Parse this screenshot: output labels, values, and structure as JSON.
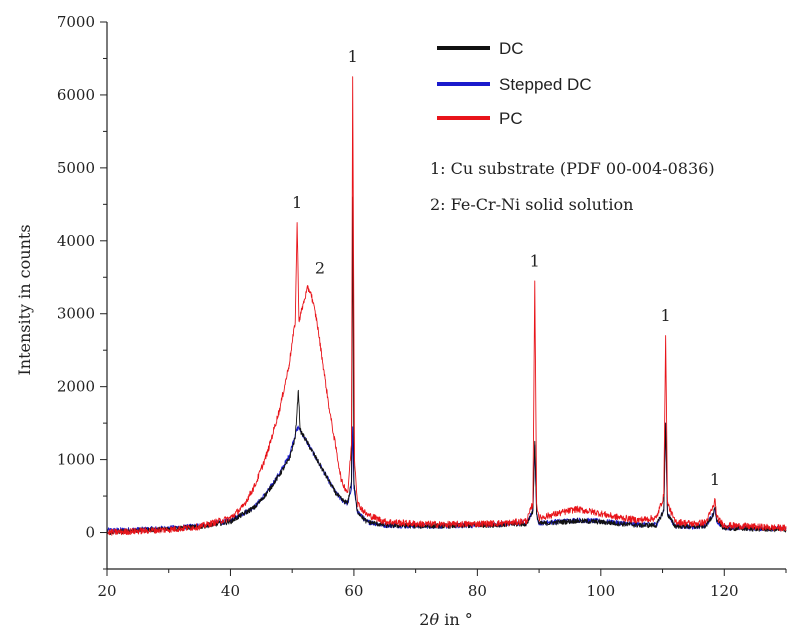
{
  "chart_data": {
    "type": "line",
    "xlabel_main": "2",
    "xlabel_theta": "θ",
    "xlabel_rest": " in °",
    "ylabel": "Intensity in counts",
    "xlim": [
      20,
      130
    ],
    "ylim": [
      -500,
      7000
    ],
    "xticks": [
      20,
      40,
      60,
      80,
      100,
      120
    ],
    "yticks": [
      0,
      1000,
      2000,
      3000,
      4000,
      5000,
      6000,
      7000
    ],
    "grid": false,
    "legend_position": "top-right",
    "series": [
      {
        "name": "DC",
        "color": "#111111",
        "points": [
          [
            20,
            0
          ],
          [
            25,
            30
          ],
          [
            30,
            50
          ],
          [
            35,
            80
          ],
          [
            40,
            150
          ],
          [
            44,
            350
          ],
          [
            46,
            550
          ],
          [
            48,
            800
          ],
          [
            49.5,
            1000
          ],
          [
            50.5,
            1300
          ],
          [
            51,
            1950
          ],
          [
            51.3,
            1400
          ],
          [
            52,
            1300
          ],
          [
            53,
            1150
          ],
          [
            54,
            1000
          ],
          [
            55,
            850
          ],
          [
            56,
            700
          ],
          [
            57,
            550
          ],
          [
            58,
            450
          ],
          [
            59,
            400
          ],
          [
            59.6,
            700
          ],
          [
            59.8,
            4600
          ],
          [
            60,
            700
          ],
          [
            60.5,
            300
          ],
          [
            62,
            150
          ],
          [
            65,
            100
          ],
          [
            70,
            90
          ],
          [
            75,
            90
          ],
          [
            80,
            100
          ],
          [
            85,
            110
          ],
          [
            88,
            120
          ],
          [
            89,
            300
          ],
          [
            89.3,
            1250
          ],
          [
            89.6,
            250
          ],
          [
            90,
            120
          ],
          [
            93,
            140
          ],
          [
            96,
            160
          ],
          [
            99,
            150
          ],
          [
            102,
            130
          ],
          [
            106,
            100
          ],
          [
            109,
            100
          ],
          [
            110.2,
            300
          ],
          [
            110.5,
            1500
          ],
          [
            110.8,
            250
          ],
          [
            112,
            90
          ],
          [
            115,
            80
          ],
          [
            117,
            90
          ],
          [
            118.2,
            250
          ],
          [
            118.5,
            350
          ],
          [
            118.8,
            150
          ],
          [
            120,
            60
          ],
          [
            125,
            50
          ],
          [
            130,
            40
          ]
        ]
      },
      {
        "name": "Stepped DC",
        "color": "#1a1acc",
        "points": [
          [
            20,
            30
          ],
          [
            25,
            40
          ],
          [
            30,
            60
          ],
          [
            35,
            90
          ],
          [
            40,
            160
          ],
          [
            44,
            360
          ],
          [
            46,
            560
          ],
          [
            48,
            820
          ],
          [
            49.5,
            1050
          ],
          [
            50.5,
            1350
          ],
          [
            51,
            1450
          ],
          [
            51.3,
            1400
          ],
          [
            52,
            1300
          ],
          [
            53,
            1150
          ],
          [
            54,
            1000
          ],
          [
            55,
            850
          ],
          [
            56,
            700
          ],
          [
            57,
            550
          ],
          [
            58,
            450
          ],
          [
            59,
            400
          ],
          [
            59.6,
            600
          ],
          [
            59.8,
            1450
          ],
          [
            60,
            600
          ],
          [
            60.5,
            300
          ],
          [
            62,
            150
          ],
          [
            65,
            100
          ],
          [
            70,
            90
          ],
          [
            75,
            90
          ],
          [
            80,
            100
          ],
          [
            85,
            120
          ],
          [
            88,
            130
          ],
          [
            89,
            300
          ],
          [
            89.3,
            1200
          ],
          [
            89.6,
            250
          ],
          [
            90,
            130
          ],
          [
            93,
            150
          ],
          [
            96,
            170
          ],
          [
            99,
            160
          ],
          [
            102,
            140
          ],
          [
            106,
            110
          ],
          [
            109,
            110
          ],
          [
            110.2,
            300
          ],
          [
            110.5,
            1500
          ],
          [
            110.8,
            250
          ],
          [
            112,
            90
          ],
          [
            115,
            80
          ],
          [
            117,
            90
          ],
          [
            118.2,
            250
          ],
          [
            118.5,
            320
          ],
          [
            118.8,
            150
          ],
          [
            120,
            70
          ],
          [
            125,
            60
          ],
          [
            130,
            50
          ]
        ]
      },
      {
        "name": "PC",
        "color": "#e8141a",
        "points": [
          [
            20,
            0
          ],
          [
            25,
            20
          ],
          [
            30,
            40
          ],
          [
            35,
            80
          ],
          [
            40,
            200
          ],
          [
            42,
            350
          ],
          [
            44,
            650
          ],
          [
            46,
            1100
          ],
          [
            48,
            1700
          ],
          [
            49.5,
            2300
          ],
          [
            50.5,
            2900
          ],
          [
            50.8,
            4250
          ],
          [
            51.1,
            2900
          ],
          [
            52,
            3200
          ],
          [
            52.5,
            3350
          ],
          [
            53,
            3300
          ],
          [
            54,
            2900
          ],
          [
            55,
            2300
          ],
          [
            56,
            1700
          ],
          [
            57,
            1200
          ],
          [
            58,
            700
          ],
          [
            59,
            550
          ],
          [
            59.6,
            1200
          ],
          [
            59.8,
            6250
          ],
          [
            60.1,
            1000
          ],
          [
            60.6,
            400
          ],
          [
            62,
            250
          ],
          [
            65,
            150
          ],
          [
            70,
            120
          ],
          [
            75,
            110
          ],
          [
            80,
            120
          ],
          [
            85,
            130
          ],
          [
            88,
            160
          ],
          [
            89,
            400
          ],
          [
            89.3,
            3450
          ],
          [
            89.6,
            400
          ],
          [
            90,
            200
          ],
          [
            93,
            260
          ],
          [
            96,
            320
          ],
          [
            99,
            280
          ],
          [
            102,
            220
          ],
          [
            106,
            170
          ],
          [
            109,
            200
          ],
          [
            110.2,
            500
          ],
          [
            110.5,
            2700
          ],
          [
            110.8,
            400
          ],
          [
            112,
            150
          ],
          [
            115,
            120
          ],
          [
            117,
            140
          ],
          [
            118.2,
            350
          ],
          [
            118.5,
            450
          ],
          [
            118.8,
            200
          ],
          [
            120,
            100
          ],
          [
            125,
            80
          ],
          [
            130,
            60
          ]
        ]
      }
    ],
    "legend": [
      {
        "label": "DC",
        "color": "#111111"
      },
      {
        "label": "Stepped DC",
        "color": "#1a1acc"
      },
      {
        "label": "PC",
        "color": "#e8141a"
      }
    ],
    "notes": [
      "1: Cu substrate (PDF 00-004-0836)",
      "2: Fe-Cr-Ni solid solution"
    ],
    "annotations": [
      {
        "text": "1",
        "x": 50.8,
        "y": 4450
      },
      {
        "text": "2",
        "x": 54.5,
        "y": 3550
      },
      {
        "text": "1",
        "x": 59.8,
        "y": 6450
      },
      {
        "text": "1",
        "x": 89.3,
        "y": 3650
      },
      {
        "text": "1",
        "x": 110.5,
        "y": 2900
      },
      {
        "text": "1",
        "x": 118.5,
        "y": 650
      }
    ]
  }
}
